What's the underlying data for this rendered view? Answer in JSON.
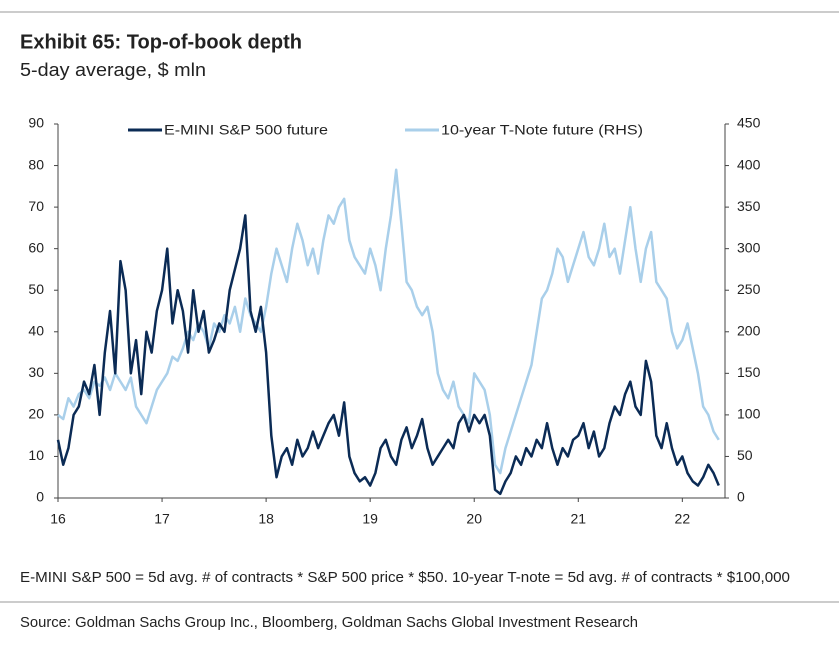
{
  "chart_data": {
    "type": "line",
    "title": "Exhibit 65: Top-of-book depth",
    "subtitle": "5-day average, $ mln",
    "x": [
      16,
      16.05,
      16.1,
      16.15,
      16.2,
      16.25,
      16.3,
      16.35,
      16.4,
      16.45,
      16.5,
      16.55,
      16.6,
      16.65,
      16.7,
      16.75,
      16.8,
      16.85,
      16.9,
      16.95,
      17,
      17.05,
      17.1,
      17.15,
      17.2,
      17.25,
      17.3,
      17.35,
      17.4,
      17.45,
      17.5,
      17.55,
      17.6,
      17.65,
      17.7,
      17.75,
      17.8,
      17.85,
      17.9,
      17.95,
      18,
      18.05,
      18.1,
      18.15,
      18.2,
      18.25,
      18.3,
      18.35,
      18.4,
      18.45,
      18.5,
      18.55,
      18.6,
      18.65,
      18.7,
      18.75,
      18.8,
      18.85,
      18.9,
      18.95,
      19,
      19.05,
      19.1,
      19.15,
      19.2,
      19.25,
      19.3,
      19.35,
      19.4,
      19.45,
      19.5,
      19.55,
      19.6,
      19.65,
      19.7,
      19.75,
      19.8,
      19.85,
      19.9,
      19.95,
      20,
      20.05,
      20.1,
      20.15,
      20.2,
      20.25,
      20.3,
      20.35,
      20.4,
      20.45,
      20.5,
      20.55,
      20.6,
      20.65,
      20.7,
      20.75,
      20.8,
      20.85,
      20.9,
      20.95,
      21,
      21.05,
      21.1,
      21.15,
      21.2,
      21.25,
      21.3,
      21.35,
      21.4,
      21.45,
      21.5,
      21.55,
      21.6,
      21.65,
      21.7,
      21.75,
      21.8,
      21.85,
      21.9,
      21.95,
      22,
      22.05,
      22.1,
      22.15,
      22.2,
      22.25,
      22.3,
      22.35
    ],
    "xlim": [
      16,
      22.41
    ],
    "xticks": [
      16,
      17,
      18,
      19,
      20,
      21,
      22
    ],
    "ylim": [
      0,
      90
    ],
    "yticks": [
      0,
      10,
      20,
      30,
      40,
      50,
      60,
      70,
      80,
      90
    ],
    "y2lim": [
      0,
      450
    ],
    "y2ticks": [
      0,
      50,
      100,
      150,
      200,
      250,
      300,
      350,
      400,
      450
    ],
    "legend": "top",
    "series": [
      {
        "name": "E-MINI S&P 500 future",
        "color": "#0b2b55",
        "values": [
          14,
          8,
          12,
          20,
          22,
          28,
          25,
          32,
          20,
          35,
          45,
          30,
          57,
          50,
          30,
          38,
          25,
          40,
          35,
          45,
          50,
          60,
          42,
          50,
          45,
          35,
          50,
          40,
          45,
          35,
          38,
          42,
          40,
          50,
          55,
          60,
          68,
          45,
          40,
          46,
          35,
          15,
          5,
          10,
          12,
          8,
          14,
          10,
          12,
          16,
          12,
          15,
          18,
          20,
          15,
          23,
          10,
          6,
          4,
          5,
          3,
          6,
          12,
          14,
          10,
          8,
          14,
          17,
          12,
          15,
          19,
          12,
          8,
          10,
          12,
          14,
          12,
          18,
          20,
          16,
          20,
          18,
          20,
          15,
          2,
          1,
          4,
          6,
          10,
          8,
          12,
          10,
          14,
          12,
          18,
          12,
          8,
          12,
          10,
          14,
          15,
          18,
          12,
          16,
          10,
          12,
          18,
          22,
          20,
          25,
          28,
          22,
          20,
          33,
          28,
          15,
          12,
          18,
          12,
          8,
          10,
          6,
          4,
          3,
          5,
          8,
          6,
          3
        ]
      },
      {
        "name": "10-year T-Note future (RHS)",
        "color": "#a9cfea",
        "axis": "y2",
        "values": [
          100,
          95,
          120,
          110,
          125,
          130,
          120,
          140,
          135,
          145,
          130,
          150,
          140,
          130,
          145,
          110,
          100,
          90,
          110,
          130,
          140,
          150,
          170,
          165,
          180,
          200,
          190,
          210,
          200,
          180,
          210,
          200,
          220,
          210,
          230,
          200,
          240,
          220,
          210,
          200,
          230,
          270,
          300,
          280,
          260,
          300,
          330,
          310,
          280,
          300,
          270,
          310,
          340,
          330,
          350,
          360,
          310,
          290,
          280,
          270,
          300,
          280,
          250,
          300,
          340,
          395,
          330,
          260,
          250,
          230,
          220,
          230,
          200,
          150,
          130,
          120,
          140,
          110,
          100,
          90,
          150,
          140,
          130,
          100,
          40,
          30,
          60,
          80,
          100,
          120,
          140,
          160,
          200,
          240,
          250,
          270,
          300,
          290,
          260,
          280,
          300,
          320,
          290,
          280,
          300,
          330,
          290,
          300,
          270,
          310,
          350,
          300,
          260,
          300,
          320,
          260,
          250,
          240,
          200,
          180,
          190,
          210,
          180,
          150,
          110,
          100,
          80,
          70
        ]
      }
    ]
  },
  "footnote": "E-MINI S&P 500 = 5d avg. # of contracts * S&P 500 price * $50. 10-year T-note = 5d avg. # of contracts * $100,000",
  "source": "Source: Goldman Sachs Group Inc., Bloomberg, Goldman Sachs Global Investment Research"
}
